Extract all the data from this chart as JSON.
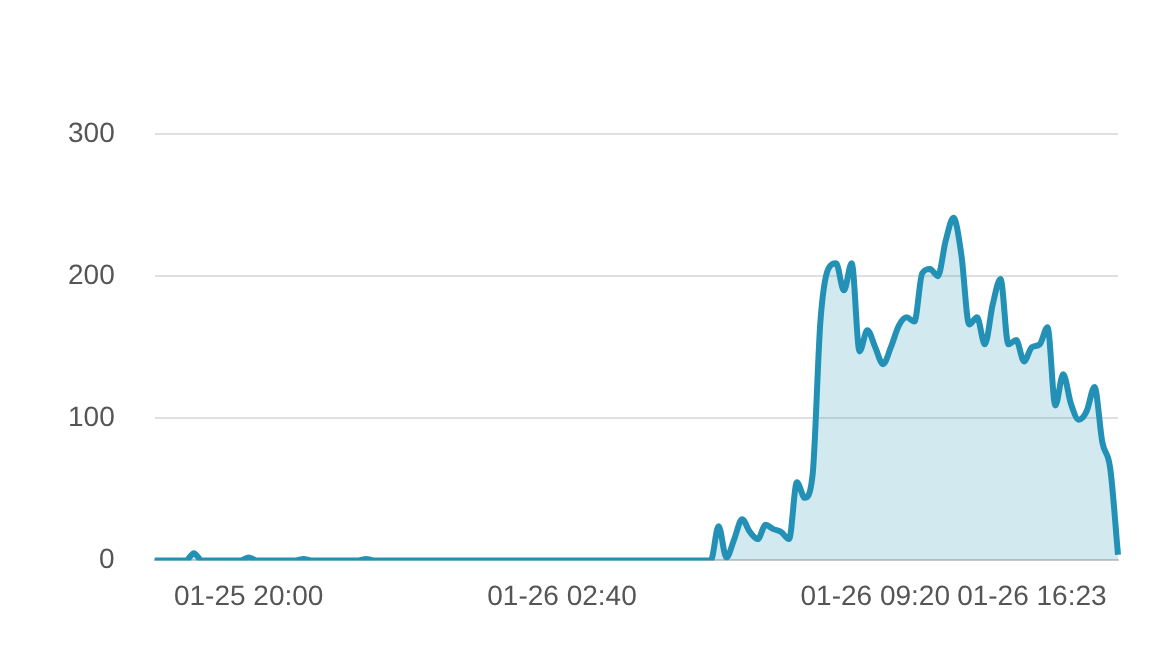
{
  "chart_data": {
    "type": "area",
    "categories": [
      null,
      null,
      null,
      null,
      null,
      null,
      null,
      null,
      null,
      null,
      null,
      null,
      "01-25 20:00",
      null,
      null,
      null,
      null,
      null,
      null,
      null,
      null,
      null,
      null,
      null,
      null,
      null,
      null,
      null,
      null,
      null,
      null,
      null,
      null,
      null,
      null,
      null,
      null,
      null,
      null,
      null,
      null,
      null,
      null,
      null,
      null,
      null,
      null,
      null,
      null,
      null,
      null,
      null,
      "01-26 02:40",
      null,
      null,
      null,
      null,
      null,
      null,
      null,
      null,
      null,
      null,
      null,
      null,
      null,
      null,
      null,
      null,
      null,
      null,
      null,
      null,
      null,
      null,
      null,
      null,
      null,
      null,
      null,
      null,
      null,
      null,
      null,
      null,
      null,
      null,
      null,
      null,
      null,
      null,
      null,
      "01-26 09:20",
      null,
      null,
      null,
      null,
      null,
      null,
      null,
      null,
      null,
      null,
      null,
      null,
      null,
      null,
      null,
      null,
      null,
      null,
      null,
      "01-26 16:23",
      null,
      null,
      null,
      null,
      null,
      null,
      null,
      null,
      null,
      null,
      null
    ],
    "values": [
      0,
      0,
      0,
      0,
      0,
      5,
      0,
      0,
      0,
      0,
      0,
      0,
      2,
      0,
      0,
      0,
      0,
      0,
      0,
      1,
      0,
      0,
      0,
      0,
      0,
      0,
      0,
      1,
      0,
      0,
      0,
      0,
      0,
      0,
      0,
      0,
      0,
      0,
      0,
      0,
      0,
      0,
      0,
      0,
      0,
      0,
      0,
      0,
      0,
      0,
      0,
      0,
      0,
      0,
      0,
      0,
      0,
      0,
      0,
      0,
      0,
      0,
      0,
      0,
      0,
      0,
      0,
      0,
      0,
      0,
      0,
      0,
      24,
      2,
      15,
      29,
      20,
      15,
      25,
      22,
      20,
      15,
      55,
      44,
      60,
      168,
      205,
      209,
      190,
      209,
      147,
      162,
      150,
      138,
      150,
      165,
      171,
      168,
      202,
      205,
      200,
      225,
      241,
      215,
      166,
      171,
      152,
      180,
      198,
      152,
      155,
      140,
      150,
      152,
      164,
      109,
      131,
      110,
      99,
      105,
      122,
      83,
      65,
      4
    ],
    "color": "#2391b5",
    "ylim": [
      0,
      300
    ],
    "yticks": [
      0,
      100,
      200,
      300
    ],
    "grid": "y"
  }
}
